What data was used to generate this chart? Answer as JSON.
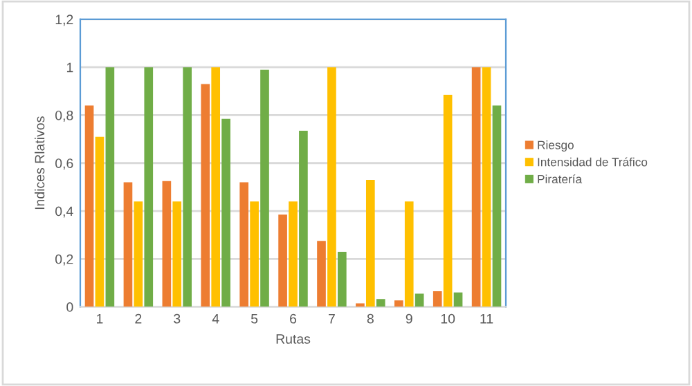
{
  "chart_data": {
    "type": "bar",
    "xlabel": "Rutas",
    "ylabel": "Indices Rlativos",
    "categories": [
      "1",
      "2",
      "3",
      "4",
      "5",
      "6",
      "7",
      "8",
      "9",
      "10",
      "11"
    ],
    "series": [
      {
        "name": "Riesgo",
        "color": "#ed7d31",
        "values": [
          0.84,
          0.52,
          0.525,
          0.93,
          0.52,
          0.385,
          0.275,
          0.015,
          0.027,
          0.065,
          1
        ]
      },
      {
        "name": "Intensidad de Tráfico",
        "color": "#ffc000",
        "values": [
          0.71,
          0.44,
          0.44,
          1,
          0.44,
          0.44,
          1,
          0.53,
          0.44,
          0.885,
          1
        ]
      },
      {
        "name": "Piratería",
        "color": "#70ad47",
        "values": [
          1,
          1,
          1,
          0.785,
          0.99,
          0.735,
          0.23,
          0.033,
          0.055,
          0.06,
          0.84
        ]
      }
    ],
    "ylim": [
      0,
      1.2
    ],
    "yticks": [
      0,
      {
        "value": 0.2,
        "label": "0,2"
      },
      {
        "value": 0.4,
        "label": "0,4"
      },
      {
        "value": 0.6,
        "label": "0,6"
      },
      {
        "value": 0.8,
        "label": "0,8"
      },
      1,
      {
        "value": 1.2,
        "label": "1,2"
      }
    ],
    "grid": "y",
    "legend": "right"
  }
}
